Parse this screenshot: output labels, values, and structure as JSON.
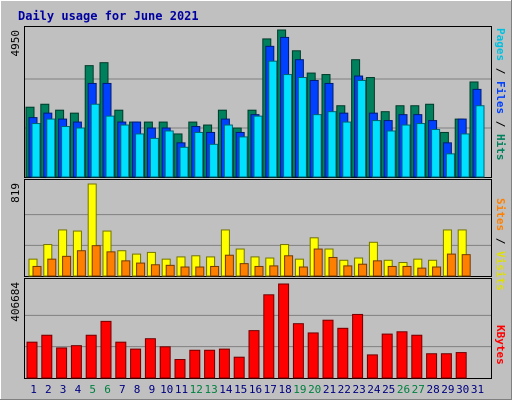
{
  "colors": {
    "hits": "#00805c",
    "files": "#0040ff",
    "pages": "#00e0ff",
    "visits": "#ffff00",
    "sites": "#ff8000",
    "kbytes": "#ff0000",
    "weekend_label": "#008040",
    "weekday_label": "#000080",
    "title": "#0000a0",
    "plot_bg": "#c0c0c0",
    "grid": "#808080"
  },
  "chart_data": [
    {
      "type": "bar",
      "title": "Daily usage for June 2021",
      "categories": [
        "1",
        "2",
        "3",
        "4",
        "5",
        "6",
        "7",
        "8",
        "9",
        "10",
        "11",
        "12",
        "13",
        "14",
        "15",
        "16",
        "17",
        "18",
        "19",
        "20",
        "21",
        "22",
        "23",
        "24",
        "25",
        "26",
        "27",
        "28",
        "29",
        "30",
        "31"
      ],
      "weekend_days": [
        "5",
        "6",
        "12",
        "13",
        "19",
        "20",
        "26",
        "27"
      ],
      "ymax_label": "4950",
      "ymax": 4950,
      "axis_labels": {
        "pages": "Pages",
        "files": "Files",
        "hits": "Hits",
        "sep": " / "
      },
      "series": [
        {
          "name": "Hits",
          "values": [
            2350,
            2450,
            2250,
            2150,
            3750,
            3850,
            2250,
            1850,
            1850,
            1850,
            1450,
            1850,
            1750,
            2250,
            1650,
            2250,
            4650,
            4950,
            4250,
            3500,
            3450,
            2400,
            3950,
            3350,
            2200,
            2400,
            2400,
            2450,
            1500,
            1950,
            3200
          ]
        },
        {
          "name": "Files",
          "values": [
            2000,
            2150,
            1950,
            1850,
            3150,
            3150,
            1850,
            1850,
            1650,
            1650,
            1150,
            1700,
            1500,
            1950,
            1500,
            2100,
            4400,
            4700,
            3950,
            3250,
            3150,
            2150,
            3400,
            2150,
            1900,
            2100,
            2100,
            1900,
            1150,
            1950,
            2950
          ]
        },
        {
          "name": "Pages",
          "values": [
            1800,
            1950,
            1700,
            1650,
            2450,
            2050,
            1750,
            1450,
            1300,
            1550,
            1000,
            1500,
            1100,
            1750,
            1350,
            2050,
            3900,
            3450,
            3350,
            2100,
            2200,
            1850,
            3250,
            1900,
            1550,
            1750,
            1800,
            1600,
            780,
            1450,
            2400
          ]
        }
      ]
    },
    {
      "type": "bar",
      "ymax_label": "819",
      "ymax": 819,
      "axis_labels": {
        "sites": "Sites",
        "visits": "Visits",
        "sep": " / "
      },
      "series": [
        {
          "name": "Visits",
          "values": [
            150,
            280,
            410,
            400,
            819,
            400,
            225,
            195,
            210,
            150,
            170,
            180,
            170,
            410,
            240,
            170,
            160,
            280,
            150,
            340,
            240,
            140,
            160,
            300,
            140,
            120,
            150,
            140,
            410,
            410,
            0
          ]
        },
        {
          "name": "Sites",
          "values": [
            85,
            150,
            175,
            225,
            270,
            215,
            135,
            115,
            100,
            95,
            80,
            80,
            85,
            185,
            110,
            85,
            90,
            180,
            80,
            240,
            165,
            90,
            105,
            135,
            85,
            85,
            70,
            80,
            195,
            190,
            0
          ]
        }
      ]
    },
    {
      "type": "bar",
      "ymax_label": "406684",
      "ymax": 406684,
      "axis_labels": {
        "kbytes": "KBytes"
      },
      "series": [
        {
          "name": "KBytes",
          "values": [
            155000,
            185000,
            130000,
            140000,
            185000,
            245000,
            155000,
            125000,
            170000,
            135000,
            80000,
            120000,
            120000,
            125000,
            90000,
            205000,
            360000,
            406684,
            235000,
            195000,
            250000,
            215000,
            275000,
            100000,
            190000,
            200000,
            185000,
            105000,
            105000,
            110000,
            0
          ]
        }
      ]
    }
  ]
}
